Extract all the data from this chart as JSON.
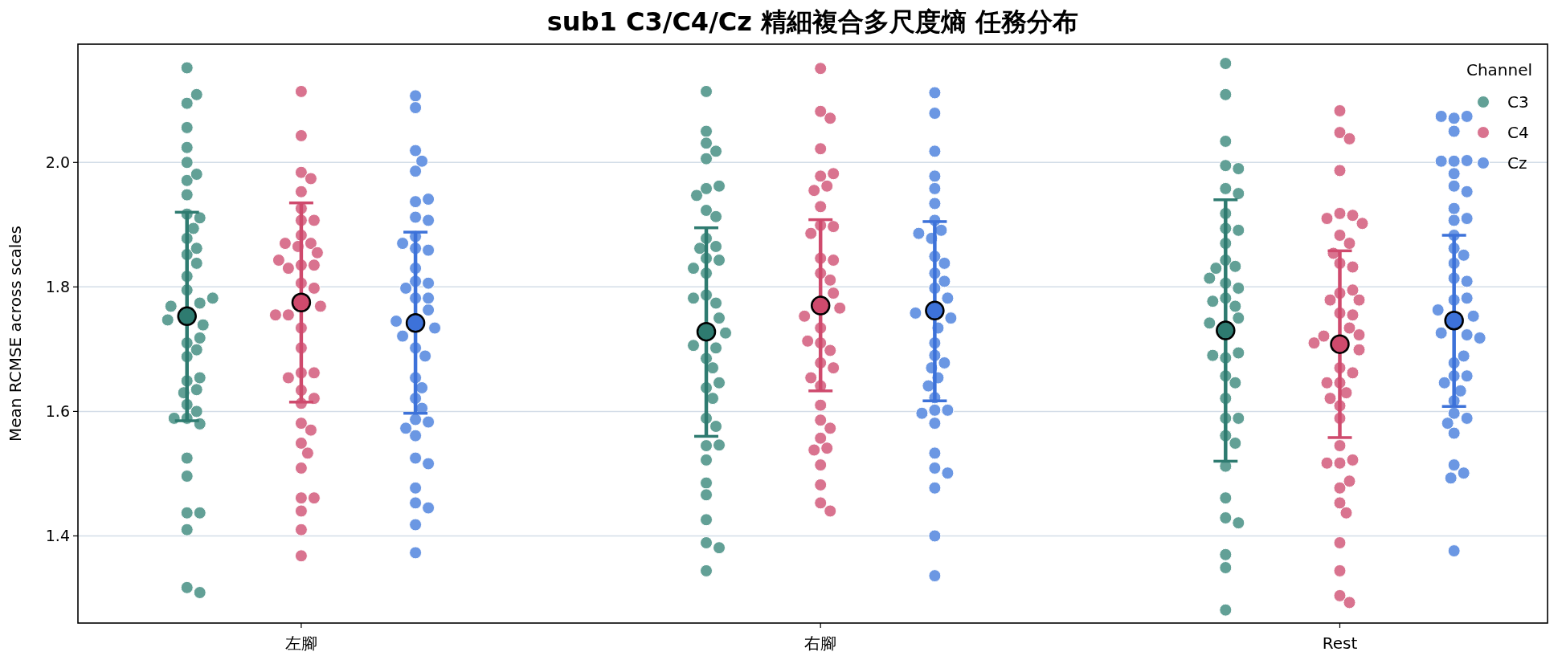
{
  "chart_data": {
    "type": "scatter",
    "title": "sub1 C3/C4/Cz 精細複合多尺度熵 任務分布",
    "ylabel": "Mean RCMSE across scales",
    "legend_title": "Channel",
    "legend": "top right",
    "grid": "y",
    "marker": "circle",
    "categories": [
      "左腳",
      "右腳",
      "Rest"
    ],
    "ylim": [
      1.26,
      2.19
    ],
    "yticks": [
      1.4,
      1.6,
      1.8,
      {
        "value": 2,
        "label": "2.0"
      }
    ],
    "series": [
      {
        "name": "C3",
        "color": "#62a096",
        "x": [
          "左腳",
          "左腳",
          "左腳",
          "左腳",
          "左腳",
          "左腳",
          "左腳",
          "左腳",
          "左腳",
          "左腳",
          "左腳",
          "左腳",
          "左腳",
          "左腳",
          "左腳",
          "左腳",
          "左腳",
          "左腳",
          "左腳",
          "左腳",
          "左腳",
          "左腳",
          "左腳",
          "左腳",
          "左腳",
          "左腳",
          "左腳",
          "左腳",
          "左腳",
          "左腳",
          "左腳",
          "左腳",
          "左腳",
          "左腳",
          "左腳",
          "左腳",
          "左腳",
          "左腳",
          "左腳",
          "左腳",
          "左腳",
          "左腳",
          "左腳",
          "右腳",
          "右腳",
          "右腳",
          "右腳",
          "右腳",
          "右腳",
          "右腳",
          "右腳",
          "右腳",
          "右腳",
          "右腳",
          "右腳",
          "右腳",
          "右腳",
          "右腳",
          "右腳",
          "右腳",
          "右腳",
          "右腳",
          "右腳",
          "右腳",
          "右腳",
          "右腳",
          "右腳",
          "右腳",
          "右腳",
          "右腳",
          "右腳",
          "右腳",
          "右腳",
          "右腳",
          "右腳",
          "右腳",
          "右腳",
          "右腳",
          "右腳",
          "右腳",
          "右腳",
          "右腳",
          "右腳",
          "Rest",
          "Rest",
          "Rest",
          "Rest",
          "Rest",
          "Rest",
          "Rest",
          "Rest",
          "Rest",
          "Rest",
          "Rest",
          "Rest",
          "Rest",
          "Rest",
          "Rest",
          "Rest",
          "Rest",
          "Rest",
          "Rest",
          "Rest",
          "Rest",
          "Rest",
          "Rest",
          "Rest",
          "Rest",
          "Rest",
          "Rest",
          "Rest",
          "Rest",
          "Rest",
          "Rest",
          "Rest",
          "Rest",
          "Rest",
          "Rest",
          "Rest",
          "Rest",
          "Rest",
          "Rest"
        ],
        "values": [
          2.152,
          2.095,
          2.109,
          2.056,
          2.024,
          2.0,
          1.971,
          1.981,
          1.917,
          1.911,
          1.852,
          1.739,
          1.747,
          1.649,
          1.589,
          1.58,
          1.6,
          1.525,
          1.496,
          1.437,
          1.437,
          1.41,
          1.317,
          1.309,
          1.71,
          1.699,
          1.635,
          1.611,
          1.654,
          1.948,
          1.878,
          1.862,
          1.817,
          1.795,
          1.774,
          1.769,
          1.718,
          1.63,
          1.688,
          1.589,
          1.894,
          1.838,
          1.782,
          2.114,
          2.05,
          2.031,
          2.018,
          2.006,
          1.958,
          1.962,
          1.947,
          1.923,
          1.913,
          1.878,
          1.865,
          1.862,
          1.846,
          1.843,
          1.822,
          1.83,
          1.787,
          1.774,
          1.782,
          1.75,
          1.726,
          1.702,
          1.706,
          1.685,
          1.67,
          1.638,
          1.646,
          1.621,
          1.589,
          1.576,
          1.545,
          1.522,
          1.546,
          1.485,
          1.466,
          1.426,
          1.389,
          1.381,
          1.344,
          2.159,
          2.109,
          2.034,
          1.995,
          1.99,
          1.958,
          1.95,
          1.918,
          1.894,
          1.891,
          1.87,
          1.843,
          1.833,
          1.83,
          1.806,
          1.798,
          1.814,
          1.782,
          1.769,
          1.777,
          1.75,
          1.742,
          1.686,
          1.694,
          1.69,
          1.657,
          1.646,
          1.621,
          1.589,
          1.589,
          1.561,
          1.549,
          1.512,
          1.461,
          1.429,
          1.421,
          1.37,
          1.349,
          1.281
        ]
      },
      {
        "name": "C4",
        "color": "#d9738f",
        "x": [
          "左腳",
          "左腳",
          "左腳",
          "左腳",
          "左腳",
          "左腳",
          "左腳",
          "左腳",
          "左腳",
          "左腳",
          "左腳",
          "左腳",
          "左腳",
          "左腳",
          "左腳",
          "左腳",
          "左腳",
          "左腳",
          "左腳",
          "左腳",
          "左腳",
          "左腳",
          "左腳",
          "左腳",
          "左腳",
          "左腳",
          "左腳",
          "左腳",
          "左腳",
          "左腳",
          "左腳",
          "左腳",
          "左腳",
          "左腳",
          "左腳",
          "左腳",
          "左腳",
          "左腳",
          "左腳",
          "左腳",
          "右腳",
          "右腳",
          "右腳",
          "右腳",
          "右腳",
          "右腳",
          "右腳",
          "右腳",
          "右腳",
          "右腳",
          "右腳",
          "右腳",
          "右腳",
          "右腳",
          "右腳",
          "右腳",
          "右腳",
          "右腳",
          "右腳",
          "右腳",
          "右腳",
          "右腳",
          "右腳",
          "右腳",
          "右腳",
          "右腳",
          "右腳",
          "右腳",
          "右腳",
          "右腳",
          "右腳",
          "右腳",
          "右腳",
          "右腳",
          "右腳",
          "右腳",
          "右腳",
          "Rest",
          "Rest",
          "Rest",
          "Rest",
          "Rest",
          "Rest",
          "Rest",
          "Rest",
          "Rest",
          "Rest",
          "Rest",
          "Rest",
          "Rest",
          "Rest",
          "Rest",
          "Rest",
          "Rest",
          "Rest",
          "Rest",
          "Rest",
          "Rest",
          "Rest",
          "Rest",
          "Rest",
          "Rest",
          "Rest",
          "Rest",
          "Rest",
          "Rest",
          "Rest",
          "Rest",
          "Rest",
          "Rest",
          "Rest",
          "Rest",
          "Rest",
          "Rest",
          "Rest",
          "Rest",
          "Rest",
          "Rest",
          "Rest",
          "Rest",
          "Rest"
        ],
        "values": [
          2.114,
          2.043,
          1.984,
          1.974,
          1.953,
          1.926,
          1.907,
          1.907,
          1.883,
          1.87,
          1.865,
          1.87,
          1.835,
          1.835,
          1.83,
          1.806,
          1.798,
          1.769,
          1.755,
          1.755,
          1.734,
          1.702,
          1.662,
          1.662,
          1.634,
          1.654,
          1.613,
          1.581,
          1.621,
          1.57,
          1.549,
          1.533,
          1.509,
          1.461,
          1.461,
          1.44,
          1.41,
          1.368,
          1.855,
          1.843,
          2.151,
          2.082,
          2.071,
          2.022,
          1.978,
          1.982,
          1.962,
          1.955,
          1.929,
          1.899,
          1.897,
          1.886,
          1.846,
          1.843,
          1.822,
          1.811,
          1.79,
          1.766,
          1.753,
          1.734,
          1.71,
          1.698,
          1.713,
          1.678,
          1.67,
          1.641,
          1.654,
          1.61,
          1.586,
          1.573,
          1.557,
          1.541,
          1.538,
          1.514,
          1.482,
          1.453,
          1.44,
          2.083,
          2.048,
          2.038,
          1.987,
          1.918,
          1.915,
          1.91,
          1.902,
          1.883,
          1.87,
          1.838,
          1.832,
          1.854,
          1.79,
          1.795,
          1.779,
          1.779,
          1.758,
          1.755,
          1.734,
          1.721,
          1.723,
          1.699,
          1.71,
          1.67,
          1.662,
          1.646,
          1.646,
          1.63,
          1.609,
          1.621,
          1.589,
          1.545,
          1.517,
          1.522,
          1.517,
          1.477,
          1.488,
          1.453,
          1.437,
          1.389,
          1.344,
          1.304,
          1.293
        ]
      },
      {
        "name": "Cz",
        "color": "#6b97e3",
        "x": [
          "左腳",
          "左腳",
          "左腳",
          "左腳",
          "左腳",
          "左腳",
          "左腳",
          "左腳",
          "左腳",
          "左腳",
          "左腳",
          "左腳",
          "左腳",
          "左腳",
          "左腳",
          "左腳",
          "左腳",
          "左腳",
          "左腳",
          "左腳",
          "左腳",
          "左腳",
          "左腳",
          "左腳",
          "左腳",
          "左腳",
          "左腳",
          "左腳",
          "左腳",
          "左腳",
          "左腳",
          "左腳",
          "左腳",
          "左腳",
          "左腳",
          "左腳",
          "左腳",
          "左腳",
          "左腳",
          "左腳",
          "右腳",
          "右腳",
          "右腳",
          "右腳",
          "右腳",
          "右腳",
          "右腳",
          "右腳",
          "右腳",
          "右腳",
          "右腳",
          "右腳",
          "右腳",
          "右腳",
          "右腳",
          "右腳",
          "右腳",
          "右腳",
          "右腳",
          "右腳",
          "右腳",
          "右腳",
          "右腳",
          "右腳",
          "右腳",
          "右腳",
          "右腳",
          "右腳",
          "右腳",
          "右腳",
          "右腳",
          "右腳",
          "右腳",
          "右腳",
          "右腳",
          "右腳",
          "Rest",
          "Rest",
          "Rest",
          "Rest",
          "Rest",
          "Rest",
          "Rest",
          "Rest",
          "Rest",
          "Rest",
          "Rest",
          "Rest",
          "Rest",
          "Rest",
          "Rest",
          "Rest",
          "Rest",
          "Rest",
          "Rest",
          "Rest",
          "Rest",
          "Rest",
          "Rest",
          "Rest",
          "Rest",
          "Rest",
          "Rest",
          "Rest",
          "Rest",
          "Rest",
          "Rest",
          "Rest",
          "Rest",
          "Rest",
          "Rest",
          "Rest",
          "Rest",
          "Rest",
          "Rest",
          "Rest",
          "Rest"
        ],
        "values": [
          2.107,
          2.088,
          2.019,
          2.002,
          1.986,
          1.937,
          1.941,
          1.912,
          1.907,
          1.881,
          1.862,
          1.859,
          1.83,
          1.809,
          1.806,
          1.798,
          1.782,
          1.763,
          1.782,
          1.734,
          1.745,
          1.721,
          1.702,
          1.689,
          1.654,
          1.638,
          1.621,
          1.605,
          1.587,
          1.583,
          1.573,
          1.561,
          1.525,
          1.516,
          1.477,
          1.453,
          1.445,
          1.418,
          1.373,
          1.87,
          2.112,
          2.079,
          2.018,
          1.978,
          1.958,
          1.934,
          1.907,
          1.891,
          1.878,
          1.886,
          1.849,
          1.838,
          1.798,
          1.822,
          1.809,
          1.782,
          1.75,
          1.758,
          1.734,
          1.71,
          1.69,
          1.678,
          1.67,
          1.654,
          1.641,
          1.622,
          1.602,
          1.602,
          1.597,
          1.581,
          1.533,
          1.509,
          1.477,
          1.501,
          1.4,
          1.336,
          2.071,
          2.074,
          2.074,
          2.05,
          2.002,
          2.003,
          2.002,
          1.982,
          1.962,
          1.953,
          1.907,
          1.91,
          1.926,
          1.883,
          1.862,
          1.851,
          1.838,
          1.814,
          1.809,
          1.779,
          1.782,
          1.753,
          1.763,
          1.723,
          1.726,
          1.718,
          1.678,
          1.689,
          1.657,
          1.657,
          1.646,
          1.617,
          1.633,
          1.597,
          1.589,
          1.581,
          1.565,
          1.514,
          1.501,
          1.493,
          1.376
        ]
      },
      {
        "type": "scatter",
        "color": "#2e7b70",
        "x": [
          "左腳",
          "右腳",
          "Rest"
        ],
        "values": [
          1.753,
          1.728,
          1.73
        ],
        "errors": [
          [
            1.585,
            1.92
          ],
          [
            1.56,
            1.895
          ],
          [
            1.52,
            1.94
          ]
        ]
      },
      {
        "type": "scatter",
        "color": "#cf4a6d",
        "x": [
          "左腳",
          "右腳",
          "Rest"
        ],
        "values": [
          1.775,
          1.77,
          1.708
        ],
        "errors": [
          [
            1.615,
            1.935
          ],
          [
            1.633,
            1.908
          ],
          [
            1.558,
            1.858
          ]
        ]
      },
      {
        "type": "scatter",
        "color": "#3d72d9",
        "x": [
          "左腳",
          "右腳",
          "Rest"
        ],
        "values": [
          1.742,
          1.762,
          1.746
        ],
        "errors": [
          [
            1.597,
            1.888
          ],
          [
            1.617,
            1.905
          ],
          [
            1.608,
            1.883
          ]
        ]
      }
    ]
  }
}
